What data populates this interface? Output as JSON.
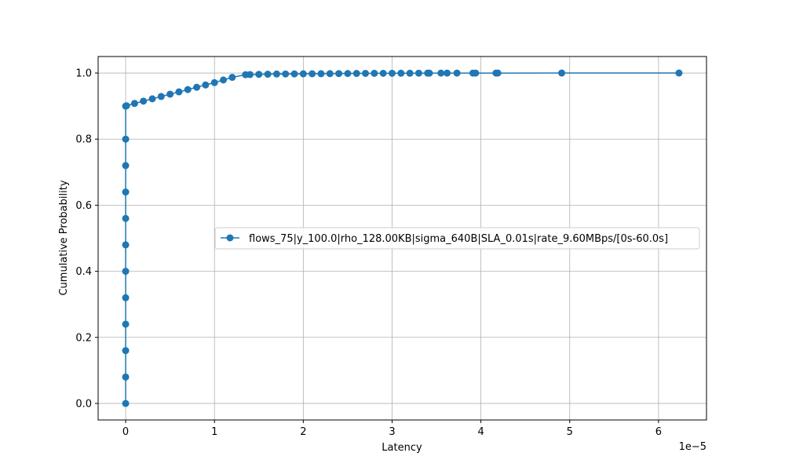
{
  "chart_data": {
    "type": "line",
    "xlabel": "Latency",
    "ylabel": "Cumulative Probability",
    "x_offset_label": "1e−5",
    "xlim": [
      -3.1e-06,
      6.54e-05
    ],
    "ylim": [
      -0.05,
      1.05
    ],
    "x_ticks": [
      0,
      1e-05,
      2e-05,
      3e-05,
      4e-05,
      5e-05,
      6e-05
    ],
    "x_tick_labels": [
      "0",
      "1",
      "2",
      "3",
      "4",
      "5",
      "6"
    ],
    "y_ticks": [
      0.0,
      0.2,
      0.4,
      0.6,
      0.8,
      1.0
    ],
    "y_tick_labels": [
      "0.0",
      "0.2",
      "0.4",
      "0.6",
      "0.8",
      "1.0"
    ],
    "grid": true,
    "legend_position": "center-right",
    "series": [
      {
        "name": "flows_75|y_100.0|rho_128.00KB|sigma_640B|SLA_0.01s|rate_9.60MBps/[0s-60.0s]",
        "color": "#1f77b4",
        "marker": "circle",
        "x": [
          0,
          0,
          0,
          0,
          0,
          0,
          0,
          0,
          0,
          0,
          0,
          0,
          1e-07,
          1e-06,
          2e-06,
          3e-06,
          4e-06,
          5e-06,
          6e-06,
          7e-06,
          8e-06,
          9e-06,
          1e-05,
          1.1e-05,
          1.2e-05,
          1.35e-05,
          1.4e-05,
          1.5e-05,
          1.6e-05,
          1.7e-05,
          1.8e-05,
          1.9e-05,
          2e-05,
          2.1e-05,
          2.2e-05,
          2.3e-05,
          2.4e-05,
          2.5e-05,
          2.6e-05,
          2.7e-05,
          2.8e-05,
          2.9e-05,
          3e-05,
          3.1e-05,
          3.2e-05,
          3.3e-05,
          3.4e-05,
          3.42e-05,
          3.55e-05,
          3.62e-05,
          3.73e-05,
          3.91e-05,
          3.94e-05,
          4.17e-05,
          4.19e-05,
          4.91e-05,
          6.23e-05
        ],
        "y": [
          0.0,
          0.08,
          0.16,
          0.24,
          0.32,
          0.4,
          0.48,
          0.56,
          0.64,
          0.72,
          0.8,
          0.9,
          0.901,
          0.908,
          0.915,
          0.922,
          0.929,
          0.936,
          0.943,
          0.95,
          0.957,
          0.964,
          0.971,
          0.979,
          0.987,
          0.995,
          0.9955,
          0.996,
          0.9965,
          0.997,
          0.9972,
          0.9974,
          0.9976,
          0.9978,
          0.998,
          0.9982,
          0.9984,
          0.9986,
          0.9988,
          0.999,
          0.9991,
          0.9992,
          0.9993,
          0.9994,
          0.9995,
          0.9996,
          0.9997,
          0.99975,
          0.9998,
          0.99983,
          0.99986,
          0.99989,
          0.99991,
          0.99993,
          0.99995,
          0.99998,
          1.0
        ]
      }
    ]
  }
}
